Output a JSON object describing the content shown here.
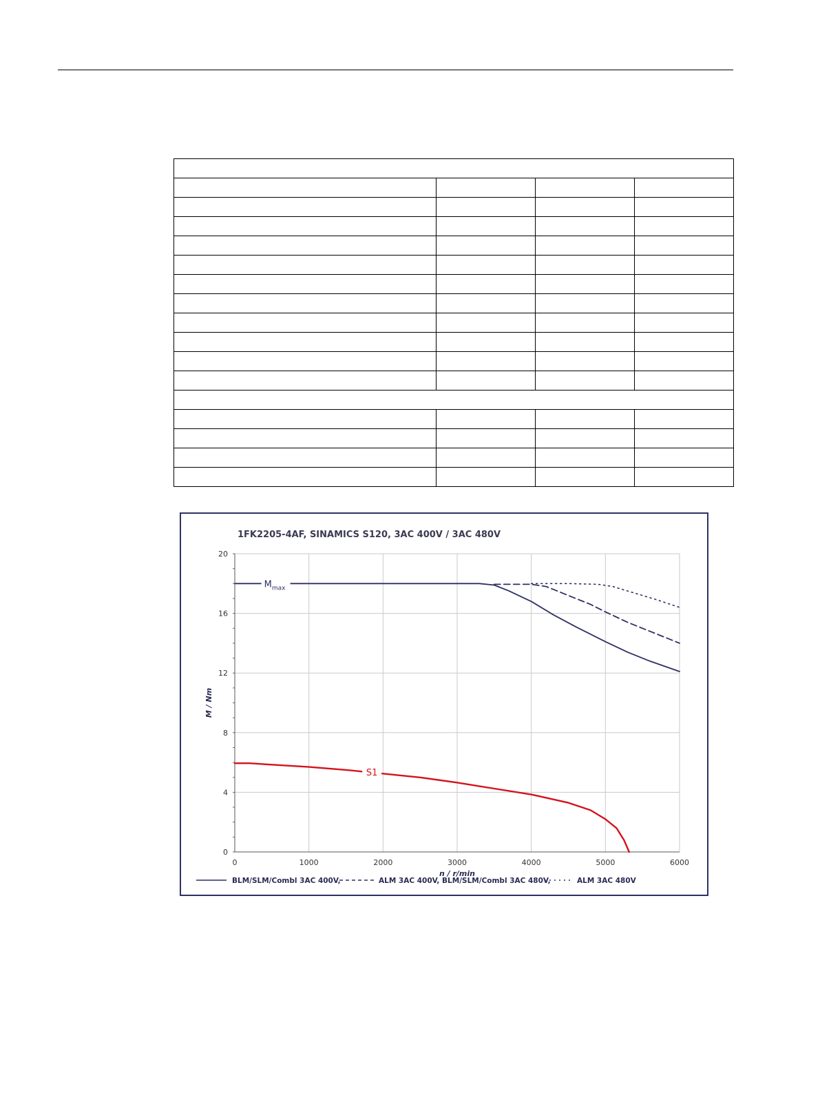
{
  "table": {
    "rows": [
      {
        "type": "span",
        "label": ""
      },
      {
        "type": "cells",
        "cells": [
          "",
          "",
          "",
          ""
        ]
      },
      {
        "type": "cells",
        "cells": [
          "",
          "",
          "",
          ""
        ]
      },
      {
        "type": "cells",
        "cells": [
          "",
          "",
          "",
          ""
        ]
      },
      {
        "type": "cells",
        "cells": [
          "",
          "",
          "",
          ""
        ]
      },
      {
        "type": "cells",
        "cells": [
          "",
          "",
          "",
          ""
        ]
      },
      {
        "type": "cells",
        "cells": [
          "",
          "",
          "",
          ""
        ]
      },
      {
        "type": "cells",
        "cells": [
          "",
          "",
          "",
          ""
        ]
      },
      {
        "type": "cells",
        "cells": [
          "",
          "",
          "",
          ""
        ]
      },
      {
        "type": "cells",
        "cells": [
          "",
          "",
          "",
          ""
        ]
      },
      {
        "type": "cells",
        "cells": [
          "",
          "",
          "",
          ""
        ]
      },
      {
        "type": "cells",
        "cells": [
          "",
          "",
          "",
          ""
        ]
      },
      {
        "type": "span",
        "label": ""
      },
      {
        "type": "cells",
        "cells": [
          "",
          "",
          "",
          ""
        ]
      },
      {
        "type": "cells",
        "cells": [
          "",
          "",
          "",
          ""
        ]
      },
      {
        "type": "cells",
        "cells": [
          "",
          "",
          "",
          ""
        ]
      },
      {
        "type": "cells",
        "cells": [
          "",
          "",
          "",
          ""
        ]
      }
    ]
  },
  "chart_data": {
    "type": "line",
    "title": "1FK2205-4AF,  SINAMICS S120,  3AC 400V / 3AC 480V",
    "xlabel": "n / r/min",
    "ylabel": "M / Nm",
    "xlim": [
      0,
      6000
    ],
    "ylim": [
      0,
      20
    ],
    "xticks": [
      0,
      1000,
      2000,
      3000,
      4000,
      5000,
      6000
    ],
    "yticks": [
      0,
      4,
      8,
      12,
      16,
      20
    ],
    "grid": true,
    "legend_position": "bottom",
    "annotations": [
      {
        "text": "M",
        "subscript": "max",
        "series": "mmax_400"
      },
      {
        "text": "S1",
        "series": "s1"
      }
    ],
    "series": [
      {
        "id": "mmax_400",
        "name": "BLM/SLM/Combl 3AC 400V,",
        "color": "#2e2f63",
        "style": "solid",
        "x": [
          0,
          3000,
          3300,
          3500,
          3700,
          4000,
          4300,
          4600,
          5000,
          5300,
          5600,
          6000
        ],
        "y": [
          18,
          18,
          18,
          17.9,
          17.5,
          16.8,
          15.9,
          15.1,
          14.1,
          13.4,
          12.8,
          12.1
        ]
      },
      {
        "id": "mmax_alm400_blm480",
        "name": "ALM 3AC 400V, BLM/SLM/Combl 3AC 480V,",
        "color": "#2e2f63",
        "style": "dashed",
        "x": [
          3500,
          4000,
          4200,
          4500,
          4800,
          5000,
          5300,
          5600,
          6000
        ],
        "y": [
          17.95,
          17.95,
          17.8,
          17.2,
          16.6,
          16.1,
          15.4,
          14.8,
          14.0
        ]
      },
      {
        "id": "mmax_alm480",
        "name": "ALM 3AC 480V",
        "color": "#2e2f63",
        "style": "dotted",
        "x": [
          4000,
          4500,
          4900,
          5100,
          5300,
          5500,
          5700,
          6000
        ],
        "y": [
          18,
          18,
          17.95,
          17.8,
          17.5,
          17.2,
          16.9,
          16.4
        ]
      },
      {
        "id": "s1",
        "name": "",
        "color": "#d4121b",
        "style": "solid",
        "x": [
          0,
          200,
          500,
          1000,
          1500,
          2000,
          2500,
          3000,
          3500,
          4000,
          4500,
          4800,
          5000,
          5150,
          5250,
          5320
        ],
        "y": [
          5.95,
          5.95,
          5.85,
          5.7,
          5.5,
          5.25,
          5.0,
          4.65,
          4.25,
          3.85,
          3.3,
          2.8,
          2.2,
          1.6,
          0.8,
          0
        ]
      }
    ]
  }
}
